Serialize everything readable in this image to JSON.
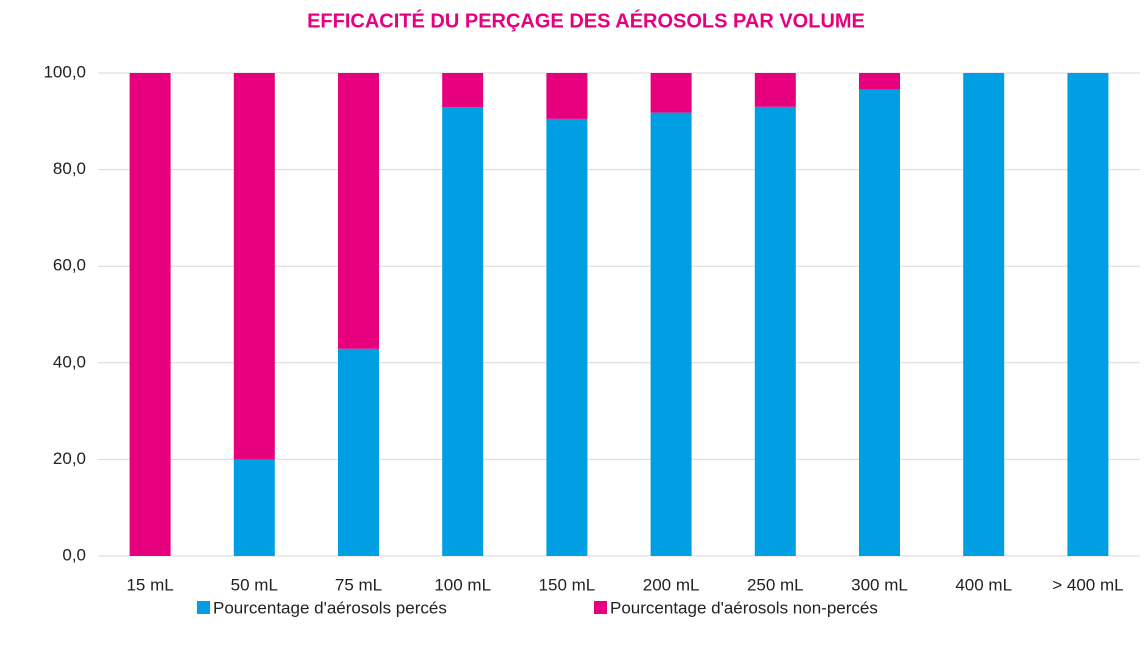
{
  "chart_data": {
    "type": "stacked_bar",
    "title": "EFFICACITÉ DU PERÇAGE DES AÉROSOLS PAR VOLUME",
    "categories": [
      "15 mL",
      "50 mL",
      "75 mL",
      "100 mL",
      "150 mL",
      "200 mL",
      "250 mL",
      "300 mL",
      "400 mL",
      "> 400 mL"
    ],
    "series": [
      {
        "name": "Pourcentage d'aérosols percés",
        "color": "#009fe3",
        "values": [
          0,
          20,
          42.9,
          92.9,
          90.5,
          91.8,
          93,
          96.6,
          100,
          100
        ]
      },
      {
        "name": "Pourcentage d'aérosols non-percés",
        "color": "#e6007e",
        "values": [
          100,
          80,
          57.1,
          7.1,
          9.5,
          8.2,
          7,
          3.4,
          0,
          0
        ]
      }
    ],
    "ylim": [
      0,
      100
    ],
    "yticks": [
      {
        "value": 0,
        "label": "0,0"
      },
      {
        "value": 20,
        "label": "20,0"
      },
      {
        "value": 40,
        "label": "40,0"
      },
      {
        "value": 60,
        "label": "60,0"
      },
      {
        "value": 80,
        "label": "80,0"
      },
      {
        "value": 100,
        "label": "100,0"
      }
    ],
    "grid": true,
    "legend": "bottom"
  }
}
